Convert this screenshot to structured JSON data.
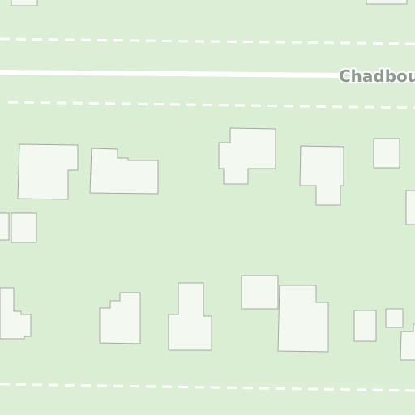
{
  "map": {
    "background_color": "#dcefd6",
    "building_fill": "#f3f8f1",
    "building_outline": "#a4aba2",
    "road_color": "#ffffff",
    "streets": [
      {
        "label": "Chadbou"
      }
    ]
  }
}
